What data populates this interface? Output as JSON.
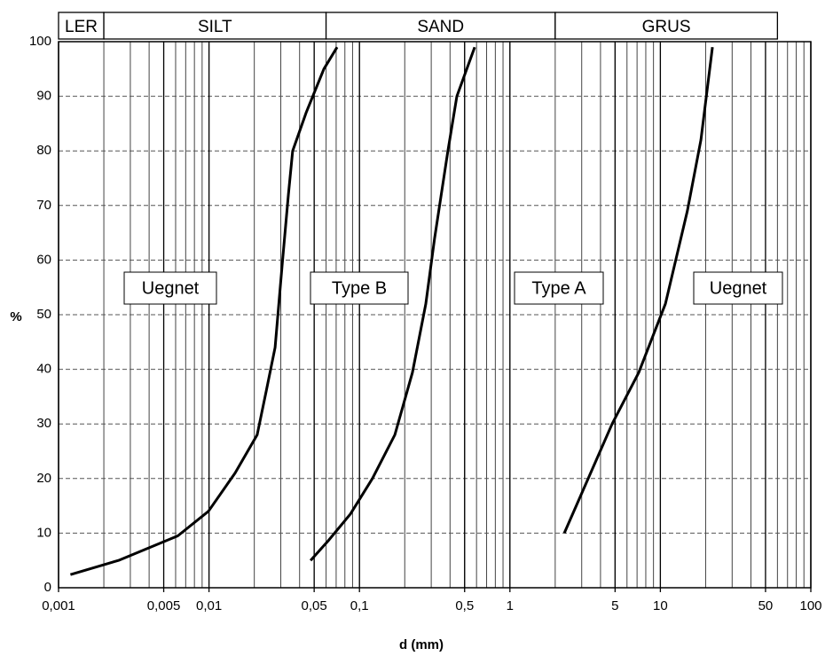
{
  "chart_data": {
    "type": "line",
    "x_label": "d (mm)",
    "y_label": "%",
    "xscale": "log",
    "xlim": [
      0.001,
      100
    ],
    "ylim": [
      0,
      100
    ],
    "xticks": [
      {
        "value": 0.001,
        "label": "0,001"
      },
      {
        "value": 0.005,
        "label": "0,005"
      },
      {
        "value": 0.01,
        "label": "0,01"
      },
      {
        "value": 0.05,
        "label": "0,05"
      },
      {
        "value": 0.1,
        "label": "0,1"
      },
      {
        "value": 0.5,
        "label": "0,5"
      },
      1,
      5,
      10,
      50,
      100
    ],
    "yticks": [
      0,
      10,
      20,
      30,
      40,
      50,
      60,
      70,
      80,
      90,
      100
    ],
    "grid": true,
    "zones": [
      {
        "label": "LER",
        "from": 0.001,
        "to": 0.002
      },
      {
        "label": "SILT",
        "from": 0.002,
        "to": 0.06
      },
      {
        "label": "SAND",
        "from": 0.06,
        "to": 2
      },
      {
        "label": "GRUS",
        "from": 2,
        "to": 60
      }
    ],
    "annotations": [
      "Uegnet",
      "Type B",
      "Type A",
      "Uegnet"
    ],
    "series": [
      {
        "color": "#000000",
        "x": [
          0.0012,
          0.0025,
          0.0062,
          0.0099,
          0.0149,
          0.0209,
          0.024,
          0.0275,
          0.0306,
          0.0337,
          0.036,
          0.0442,
          0.058,
          0.071
        ],
        "values": [
          2.4,
          5,
          9.5,
          14,
          21,
          28,
          36,
          44,
          59,
          72,
          80,
          87,
          95,
          99
        ]
      },
      {
        "color": "#000000",
        "x": [
          0.0473,
          0.062,
          0.0871,
          0.122,
          0.172,
          0.225,
          0.276,
          0.316,
          0.387,
          0.444,
          0.583
        ],
        "values": [
          5,
          8.6,
          13.5,
          20,
          28,
          39.4,
          52,
          64,
          80,
          90,
          99
        ]
      },
      {
        "color": "#000000",
        "x": [
          2.3,
          4.78,
          7.18,
          10.8,
          15.1,
          18.6,
          22.2
        ],
        "values": [
          10,
          30,
          39.4,
          52,
          69,
          82,
          99
        ]
      }
    ]
  }
}
